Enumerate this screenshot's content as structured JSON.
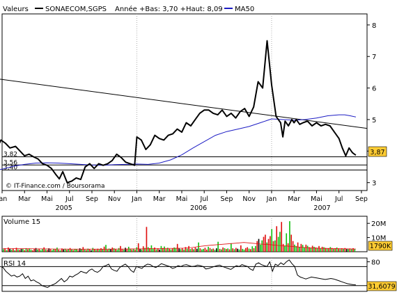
{
  "chart_data": [
    {
      "type": "line",
      "panel": "price",
      "legend": {
        "valeurs_label": "Valeurs",
        "series_label": "SONAECOM,SGPS",
        "range_label": "Année +Bas: 3,70 +Haut: 8,09",
        "ma_label": "MA50"
      },
      "colors": {
        "price": "#000000",
        "ma50": "#1c1cc4",
        "lines": "#000000"
      },
      "y_ticks": [
        "3",
        "4",
        "5",
        "6",
        "7",
        "8"
      ],
      "ylim": [
        2.75,
        8.35
      ],
      "xlim": [
        0,
        32.5
      ],
      "x_months": [
        "Jan",
        "Mar",
        "Mai",
        "Jul",
        "Sep",
        "Nov",
        "Jan",
        "Mar",
        "Mai",
        "Jul",
        "Sep",
        "Nov",
        "Jan",
        "Mar",
        "Mai",
        "Jul",
        "Sep"
      ],
      "x_month_pos": [
        0,
        2,
        4,
        6,
        8,
        10,
        12,
        14,
        16,
        18,
        20,
        22,
        24,
        26,
        28,
        30,
        32
      ],
      "x_years": [
        "2005",
        "2006",
        "2007"
      ],
      "x_year_pos": [
        5.5,
        17.5,
        28.5
      ],
      "watermark": "© IT-Finance.com / Boursorama",
      "last_value": "3,87",
      "level_labels": [
        "3,82",
        "3,56",
        "3,40"
      ],
      "levels": [
        3.82,
        3.56,
        3.4
      ],
      "trendline": [
        [
          -1,
          6.32
        ],
        [
          32.5,
          4.72
        ]
      ],
      "price": {
        "x": [
          -0.9,
          -0.5,
          -0.1,
          0.3,
          0.7,
          1.2,
          1.6,
          2,
          2.4,
          2.8,
          3.2,
          3.6,
          4,
          4.4,
          4.8,
          5.1,
          5.4,
          5.8,
          6.2,
          6.6,
          7,
          7.4,
          7.8,
          8.2,
          8.6,
          9,
          9.4,
          9.8,
          10.2,
          10.6,
          11,
          11.4,
          11.8,
          12,
          12.4,
          12.8,
          13.2,
          13.6,
          14,
          14.4,
          14.8,
          15.2,
          15.6,
          16,
          16.4,
          16.8,
          17.2,
          17.6,
          18,
          18.4,
          18.8,
          19.2,
          19.6,
          20,
          20.4,
          20.8,
          21.2,
          21.6,
          22,
          22.4,
          22.8,
          23.2,
          23.6,
          24,
          24.4,
          24.8,
          25,
          25.2,
          25.5,
          25.8,
          26,
          26.2,
          26.5,
          26.8,
          27.2,
          27.6,
          28,
          28.4,
          28.8,
          29.2,
          29.6,
          30,
          30.3,
          30.6,
          30.9,
          31.2,
          31.5
        ],
        "y": [
          3.8,
          4.05,
          4.35,
          4.25,
          4.1,
          4.15,
          4.0,
          3.85,
          3.9,
          3.82,
          3.75,
          3.6,
          3.55,
          3.45,
          3.25,
          3.12,
          3.35,
          3.0,
          3.05,
          3.15,
          3.1,
          3.5,
          3.6,
          3.45,
          3.6,
          3.55,
          3.6,
          3.7,
          3.9,
          3.8,
          3.65,
          3.6,
          3.55,
          4.45,
          4.35,
          4.05,
          4.2,
          4.5,
          4.4,
          4.35,
          4.5,
          4.55,
          4.7,
          4.6,
          4.9,
          4.8,
          5.0,
          5.2,
          5.3,
          5.3,
          5.2,
          5.15,
          5.3,
          5.1,
          5.2,
          5.05,
          5.25,
          5.35,
          5.1,
          5.4,
          6.2,
          6.0,
          7.5,
          6.1,
          5.1,
          4.9,
          4.45,
          4.95,
          4.8,
          5.0,
          4.9,
          5.0,
          4.85,
          4.9,
          4.95,
          4.8,
          4.9,
          4.8,
          4.85,
          4.8,
          4.6,
          4.4,
          4.1,
          3.85,
          4.1,
          3.95,
          3.87
        ]
      },
      "ma50": {
        "x": [
          -1,
          0,
          1,
          2,
          3,
          4,
          5,
          6,
          7,
          8,
          9,
          10,
          11,
          12,
          13,
          14,
          15,
          16,
          17,
          18,
          19,
          20,
          21,
          22,
          23,
          24,
          25,
          26,
          27,
          28,
          29,
          30,
          30.5,
          31,
          31.5
        ],
        "y": [
          3.34,
          3.43,
          3.52,
          3.58,
          3.62,
          3.63,
          3.62,
          3.6,
          3.58,
          3.56,
          3.55,
          3.57,
          3.58,
          3.59,
          3.58,
          3.62,
          3.72,
          3.88,
          4.1,
          4.3,
          4.5,
          4.62,
          4.7,
          4.78,
          4.9,
          5.02,
          5.0,
          4.98,
          5.0,
          5.05,
          5.12,
          5.15,
          5.15,
          5.12,
          5.08
        ]
      }
    },
    {
      "type": "bar",
      "panel": "volume",
      "label": "Volume 15",
      "y_ticks": [
        "10M",
        "20M"
      ],
      "last_value": "1790K",
      "colors": {
        "up": "#10c010",
        "down": "#e01010",
        "flat": "#000000",
        "ma": "#e01010"
      },
      "ylim": [
        0,
        25
      ],
      "values": [
        1.8,
        2.4,
        1.2,
        3.0,
        2.0,
        1.5,
        2.2,
        1.0,
        2.8,
        1.6,
        1.3,
        2.1,
        1.9,
        1.1,
        2.5,
        1.7,
        2.3,
        1.4,
        1.0,
        2.0,
        2.6,
        1.5,
        1.9,
        1.2,
        2.2,
        3.1,
        1.6,
        1.3,
        2.4,
        1.8,
        1.1,
        2.0,
        1.7,
        2.9,
        1.4,
        1.0,
        2.3,
        1.6,
        2.1,
        1.3,
        1.8,
        2.6,
        1.5,
        1.2,
        2.0,
        1.7,
        1.1,
        2.4,
        1.9,
        3.3,
        1.5,
        1.2,
        2.2,
        1.6,
        1.0,
        2.7,
        1.8,
        1.3,
        2.1,
        1.5,
        2.5,
        1.9,
        3.6,
        4.8,
        1.4,
        2.2,
        1.7,
        3.0,
        2.4,
        1.8,
        1.3,
        2.6,
        4.0,
        2.0,
        1.5,
        2.8,
        1.9,
        3.5,
        2.2,
        1.6,
        2.0,
        1.4,
        3.2,
        6.0,
        2.2,
        1.6,
        3.8,
        2.7,
        17.5,
        3.2,
        2.5,
        4.5,
        2.0,
        3.0,
        1.7,
        2.4,
        1.5,
        4.0,
        2.6,
        3.7,
        1.9,
        2.8,
        2.0,
        1.6,
        2.2,
        3.0,
        2.7,
        5.5,
        2.3,
        1.8,
        2.6,
        1.5,
        3.3,
        2.2,
        4.0,
        1.9,
        2.5,
        1.7,
        3.0,
        2.1,
        6.5,
        2.4,
        1.6,
        2.0,
        2.8,
        1.5,
        3.5,
        2.6,
        1.8,
        2.2,
        1.4,
        2.4,
        7.0,
        2.0,
        1.6,
        3.0,
        2.5,
        1.9,
        2.3,
        1.7,
        6.0,
        2.4,
        1.8,
        2.7,
        2.1,
        1.6,
        4.5,
        2.0,
        1.5,
        2.6,
        3.2,
        2.2,
        1.8,
        3.8,
        2.5,
        4.0,
        7.5,
        9.0,
        5.0,
        8.0,
        10.5,
        12.0,
        6.5,
        9.0,
        11.0,
        16.0,
        7.5,
        8.0,
        18.0,
        10.5,
        14.0,
        21.0,
        5.5,
        4.0,
        13.0,
        6.0,
        21.5,
        12.0,
        7.5,
        5.0,
        4.0,
        6.5,
        3.5,
        5.5,
        4.8,
        3.0,
        5.0,
        4.2,
        3.2,
        2.8,
        4.2,
        3.5,
        3.0,
        2.8,
        4.0,
        2.5,
        3.5,
        3.2,
        2.7,
        2.2,
        2.5,
        3.3,
        2.6,
        2.0,
        2.4,
        3.0,
        2.2,
        1.9,
        2.4,
        2.1,
        2.6,
        2.2,
        1.8,
        2.3,
        1.9,
        2.5,
        1.79
      ],
      "dirs": "GRGRKGRGRGRKGRGRGGRRKGRGGRGRKRGGRGRGRKGRGRGRGGRKGRGRGRKGRGRGRGRGRGKRGRGGRRGKRGGRGRGRKGRGRGRGGRGRKGRGRGRGRGGRKGRGRGRGRGRKGRGGRRGRGRGKGRGRGRGRGRGRKGRGGRRGRGRGRKGGRRGRRGRGRGGRRGGRGRRGGRGRGGRGRGRGRGRGRGRGRGRGRGR",
      "ma": [
        2.2,
        2.2,
        2.1,
        2.1,
        2.0,
        2.0,
        1.9,
        1.9,
        1.8,
        1.8,
        1.8,
        1.8,
        1.8,
        1.9,
        1.9,
        2.0,
        2.0,
        2.1,
        2.2,
        2.3,
        2.4,
        2.5,
        3.0,
        3.8,
        4.5,
        5.0,
        5.5,
        6.0,
        6.5,
        6.0,
        5.4,
        5.0,
        4.4,
        4.0,
        3.5,
        3.0,
        2.6,
        2.4,
        2.3,
        2.2,
        2.0,
        1.9
      ]
    },
    {
      "type": "line",
      "panel": "rsi",
      "label": "RSI 14",
      "y_ticks": [
        "80"
      ],
      "last_value": "31,6079",
      "ylim": [
        18,
        88
      ],
      "levels": [
        70,
        30
      ],
      "color": "#000000",
      "values": [
        62,
        68,
        72,
        70,
        68,
        60,
        55,
        50,
        52,
        48,
        50,
        55,
        45,
        50,
        40,
        42,
        38,
        35,
        30,
        28,
        26,
        30,
        32,
        35,
        40,
        45,
        38,
        42,
        50,
        48,
        52,
        55,
        60,
        58,
        56,
        62,
        65,
        60,
        58,
        62,
        70,
        72,
        75,
        65,
        62,
        60,
        68,
        72,
        75,
        70,
        62,
        58,
        70,
        68,
        66,
        72,
        75,
        74,
        70,
        68,
        72,
        76,
        74,
        72,
        70,
        66,
        68,
        72,
        70,
        73,
        74,
        72,
        70,
        71,
        73,
        72,
        70,
        65,
        66,
        68,
        70,
        72,
        73,
        70,
        68,
        66,
        64,
        68,
        72,
        70,
        74,
        72,
        70,
        65,
        62,
        75,
        78,
        74,
        72,
        70,
        80,
        60,
        75,
        72,
        78,
        74,
        80,
        84,
        76,
        70,
        52,
        48,
        46,
        44,
        46,
        48,
        47,
        46,
        45,
        44,
        43,
        44,
        45,
        44,
        42,
        40,
        38,
        36,
        34,
        33,
        32,
        31.6
      ]
    }
  ]
}
